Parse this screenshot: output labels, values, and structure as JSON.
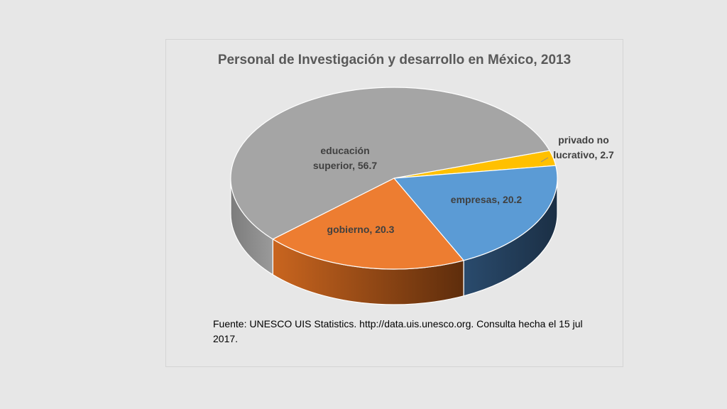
{
  "chart_data": {
    "type": "pie",
    "title": "Personal de Investigación y desarrollo en México, 2013",
    "slices": [
      {
        "name": "privado no lucrativo",
        "value": 2.7,
        "color": "#ffc000",
        "side": "#b38600",
        "label_lines": [
          "privado no",
          "lucrativo, 2.7"
        ]
      },
      {
        "name": "empresas",
        "value": 20.2,
        "color": "#5b9bd5",
        "side": "#203a55",
        "label_lines": [
          "empresas, 20.2"
        ]
      },
      {
        "name": "gobierno",
        "value": 20.3,
        "color": "#ed7d31",
        "side": "#9c4f1c",
        "label_lines": [
          "gobierno, 20.3"
        ]
      },
      {
        "name": "educación superior",
        "value": 56.7,
        "color": "#a5a5a5",
        "side": "#6e6e6e",
        "label_lines": [
          "educación",
          "superior, 56.7"
        ]
      }
    ],
    "legend": "none",
    "style": "3d-pie"
  },
  "source_note": "Fuente: UNESCO UIS Statistics. http://data.uis.unesco.org. Consulta hecha el 15 jul 2017."
}
